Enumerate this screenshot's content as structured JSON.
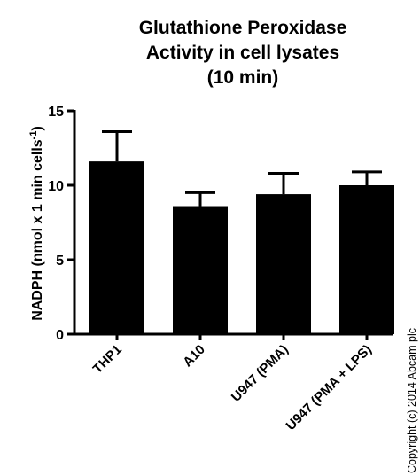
{
  "chart_data": {
    "type": "bar",
    "title_lines": [
      "Glutathione Peroxidase",
      "Activity in cell lysates",
      "(10 min)"
    ],
    "ylabel": {
      "main": "NADPH (nmol x 1 min cells",
      "sup": "-1",
      "close": ")"
    },
    "xlabel": "",
    "ylim": [
      0,
      15
    ],
    "yticks": [
      0,
      5,
      10,
      15
    ],
    "ytick_labels": [
      "0",
      "5",
      "10",
      "15"
    ],
    "categories": [
      "THP1",
      "A10",
      "U947 (PMA)",
      "U947 (PMA + LPS)"
    ],
    "values": [
      11.6,
      8.6,
      9.4,
      10.0
    ],
    "error_upper": [
      13.6,
      9.5,
      10.8,
      10.9
    ],
    "grid": false,
    "bar_color": "#000000"
  },
  "copyright": "Copyright (c) 2014 Abcam plc"
}
